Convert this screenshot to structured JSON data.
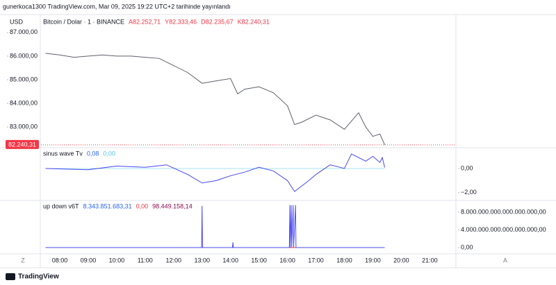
{
  "header": {
    "publisher": "gunerkoca1300 TradingView.com, Mar 09, 2025 19:22 UTC+2 tarihinde yayınlandı",
    "currency": "USD"
  },
  "time_axis": {
    "ticks": [
      "08:00",
      "09:00",
      "10:00",
      "11:00",
      "12:00",
      "13:00",
      "14:00",
      "15:00",
      "16:00",
      "17:00",
      "18:00",
      "19:00",
      "20:00",
      "21:00"
    ],
    "buttons": [
      "Z",
      "A"
    ]
  },
  "chart_data": [
    {
      "type": "line",
      "legend": [
        {
          "text": "Bitcoin / Dolar · 1 · BINANCE",
          "color": "#131722"
        },
        {
          "text": "A82.252,71",
          "color": "#f23645"
        },
        {
          "text": "Y82.333,46",
          "color": "#f23645"
        },
        {
          "text": "D82.235,67",
          "color": "#f23645"
        },
        {
          "text": "K82.240,31",
          "color": "#f23645"
        }
      ],
      "x": [
        "07:30",
        "08:00",
        "08:30",
        "09:00",
        "09:30",
        "10:00",
        "10:30",
        "11:00",
        "11:30",
        "12:00",
        "12:30",
        "13:00",
        "13:30",
        "14:00",
        "14:15",
        "14:30",
        "15:00",
        "15:30",
        "16:00",
        "16:15",
        "16:30",
        "17:00",
        "17:30",
        "18:00",
        "18:30",
        "18:45",
        "19:00",
        "19:15",
        "19:25"
      ],
      "series": [
        {
          "color": "#5d606b",
          "values": [
            86120,
            86050,
            85950,
            86000,
            86050,
            86000,
            86000,
            85950,
            85900,
            85600,
            85300,
            84850,
            84950,
            85050,
            84400,
            84600,
            84700,
            84450,
            83900,
            83100,
            83200,
            83500,
            83300,
            82900,
            83600,
            83000,
            82600,
            82700,
            82240
          ]
        }
      ],
      "last_price": {
        "value": 82240.31,
        "label": "82.240,31",
        "color": "#f23645"
      },
      "ylim": [
        82150,
        87730
      ],
      "yticks": [
        {
          "value": 87000,
          "label": "87.000,00"
        },
        {
          "value": 86000,
          "label": "86.000,00"
        },
        {
          "value": 85000,
          "label": "85.000,00"
        },
        {
          "value": 84000,
          "label": "84.000,00"
        },
        {
          "value": 83000,
          "label": "83.000,00"
        }
      ]
    },
    {
      "type": "line",
      "legend": [
        {
          "text": "sinus wave Tv",
          "color": "#131722"
        },
        {
          "text": "0,08",
          "color": "#2962ff"
        },
        {
          "text": "0,00",
          "color": "#4fc3f7"
        }
      ],
      "x": [
        "07:30",
        "09:00",
        "10:00",
        "11:00",
        "11:45",
        "12:30",
        "13:00",
        "13:30",
        "14:00",
        "14:30",
        "15:00",
        "15:30",
        "16:00",
        "16:15",
        "16:45",
        "17:00",
        "17:30",
        "18:00",
        "18:15",
        "18:45",
        "19:00",
        "19:15",
        "19:20",
        "19:25"
      ],
      "series": [
        {
          "color": "#a5e4f3",
          "values": [
            0,
            0,
            0,
            0,
            0,
            0,
            0,
            0,
            0,
            0,
            0,
            0,
            0,
            0,
            0,
            0,
            0,
            0,
            0,
            0,
            0,
            0,
            0,
            0
          ]
        },
        {
          "color": "#4646f0",
          "values": [
            0.0,
            -0.1,
            0.2,
            0.1,
            0.3,
            -0.5,
            -1.2,
            -1.0,
            -0.6,
            -0.3,
            0.1,
            -0.2,
            -1.0,
            -1.9,
            -1.0,
            -0.5,
            0.3,
            0.0,
            1.2,
            0.6,
            1.0,
            0.5,
            0.9,
            0.08
          ]
        }
      ],
      "ylim": [
        -2.58,
        1.6
      ],
      "yticks": [
        {
          "value": 0,
          "label": "0,00"
        },
        {
          "value": -2,
          "label": "−2,00"
        }
      ]
    },
    {
      "type": "line",
      "legend": [
        {
          "text": "up down v6T",
          "color": "#131722"
        },
        {
          "text": "8.343.851.683,31",
          "color": "#2962ff"
        },
        {
          "text": "0,00",
          "color": "#f23645"
        },
        {
          "text": "98.449.158,14",
          "color": "#880e4f"
        }
      ],
      "x": [
        "07:30",
        "12:59",
        "13:00",
        "13:01",
        "14:04",
        "14:05",
        "14:06",
        "16:04",
        "16:05",
        "16:06",
        "16:08",
        "16:09",
        "16:12",
        "16:13",
        "16:17",
        "16:18",
        "19:25"
      ],
      "series": [
        {
          "color": "#f23645",
          "values": [
            0,
            0,
            0,
            0,
            0,
            0,
            0,
            0,
            0,
            0,
            0,
            0,
            0,
            0,
            0,
            0,
            0
          ]
        },
        {
          "color": "#4a4af0",
          "values": [
            0,
            0,
            9.4e+18,
            0,
            0,
            1.2e+18,
            0,
            0,
            9.6e+18,
            0,
            9.6e+18,
            0,
            9.6e+18,
            0,
            9.6e+18,
            0,
            0
          ]
        }
      ],
      "ylim": [
        -1.25e+18,
        1.05e+19
      ],
      "yticks": [
        {
          "value": 8e+18,
          "label": "8.000.000.000.000.000.000,00"
        },
        {
          "value": 4e+18,
          "label": "4.000.000.000.000.000.000,00"
        },
        {
          "value": 0,
          "label": "0,00"
        }
      ]
    }
  ],
  "footer": {
    "brand": "TradingView"
  }
}
